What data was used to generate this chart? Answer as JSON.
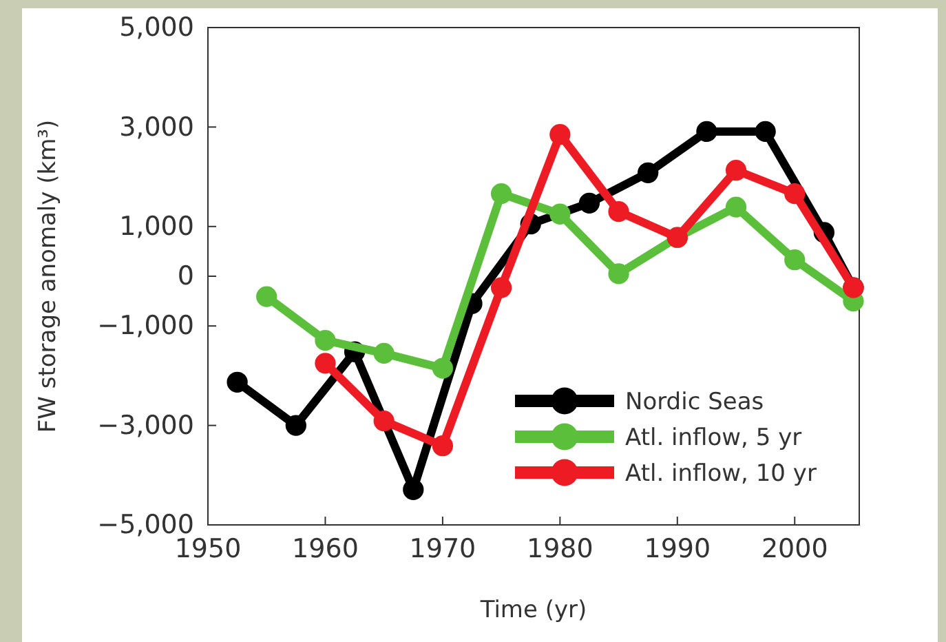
{
  "chart_data": {
    "type": "line",
    "xlabel": "Time (yr)",
    "ylabel": "FW storage anomaly (km³)",
    "xlim": [
      1950,
      2005.5
    ],
    "xticks": [
      1950,
      1960,
      1970,
      1980,
      1990,
      2000
    ],
    "ylim": [
      -5000,
      5000
    ],
    "yticks": [
      {
        "value": 5000,
        "label": "5,000"
      },
      {
        "value": 3000,
        "label": "3,000"
      },
      {
        "value": 1000,
        "label": "1,000"
      },
      0,
      {
        "value": -1000,
        "label": "−1,000"
      },
      {
        "value": -3000,
        "label": "−3,000"
      },
      {
        "value": -5000,
        "label": "−5,000"
      }
    ],
    "grid": false,
    "legend": "bottom right",
    "marker": "circle",
    "line_style": "solid",
    "series": [
      {
        "name": "Nordic Seas",
        "color": "#000000",
        "x": [
          1952.5,
          1957.5,
          1962.5,
          1967.5,
          1972.5,
          1977.5,
          1982.5,
          1987.5,
          1992.5,
          1997.5,
          2002.5,
          2005
        ],
        "values": [
          -2130,
          -3000,
          -1520,
          -4290,
          -550,
          1050,
          1470,
          2080,
          2910,
          2910,
          880,
          -230
        ]
      },
      {
        "name": "Atl. inflow, 5 yr",
        "color": "#5cbf3c",
        "x": [
          1955,
          1960,
          1965,
          1970,
          1975,
          1980,
          1985,
          1990,
          1995,
          2000,
          2005
        ],
        "values": [
          -410,
          -1290,
          -1550,
          -1850,
          1660,
          1250,
          50,
          780,
          1390,
          330,
          -500
        ]
      },
      {
        "name": "Atl. inflow, 10 yr",
        "color": "#ed1c24",
        "x": [
          1960,
          1965,
          1970,
          1975,
          1980,
          1985,
          1990,
          1995,
          2000,
          2005
        ],
        "values": [
          -1750,
          -2910,
          -3410,
          -230,
          2850,
          1300,
          780,
          2130,
          1660,
          -230
        ]
      }
    ]
  }
}
